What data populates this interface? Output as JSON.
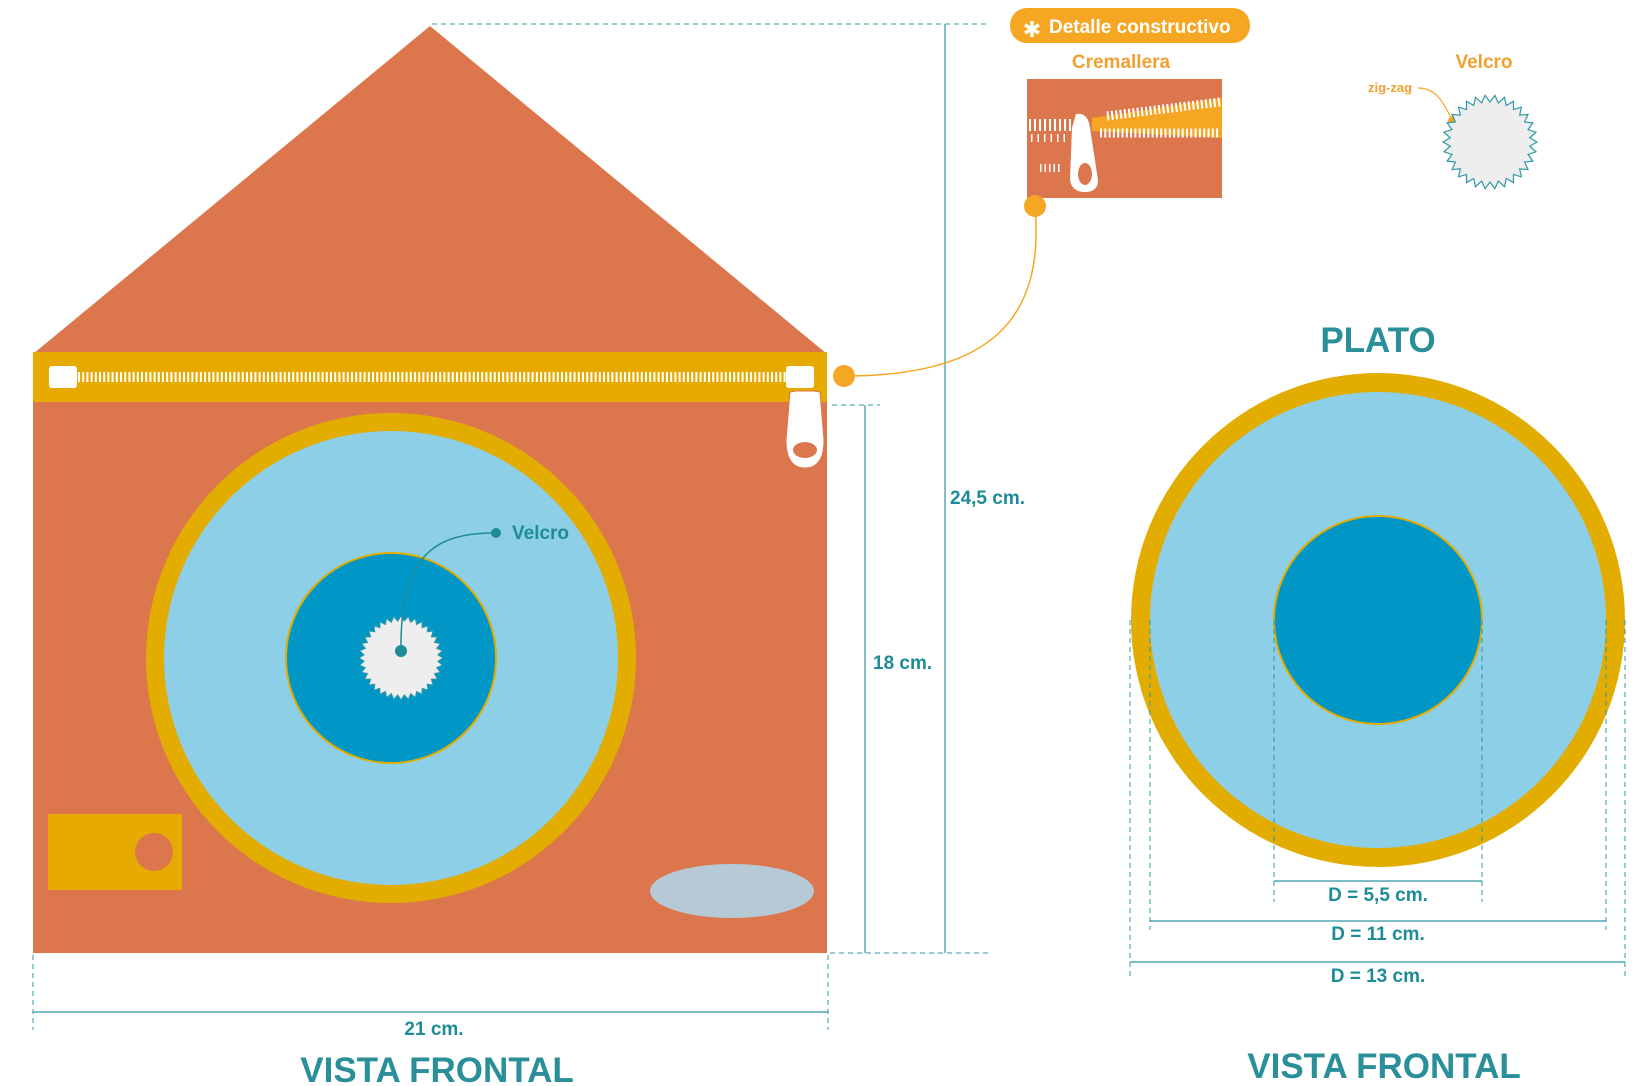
{
  "colors": {
    "house_body": "#dc764c",
    "zipper_band": "#e6aa00",
    "plate_ring": "#e2ad00",
    "plate_light": "#8ccfe6",
    "plate_dark": "#0096c6",
    "velcro": "#eeeeee",
    "pocket_oval": "#b5c9d6",
    "callout_orange": "#f5a623",
    "dimension_teal": "#2a8f99"
  },
  "house_view": {
    "velcro_label": "Velcro",
    "height_total": "24,5 cm.",
    "height_body": "18 cm.",
    "width": "21 cm.",
    "title": "VISTA FRONTAL"
  },
  "detail": {
    "badge_icon": "asterisk-icon",
    "badge_label": "Detalle constructivo",
    "zipper_label": "Cremallera",
    "velcro_label": "Velcro",
    "zigzag_label": "zig-zag"
  },
  "plate_view": {
    "heading": "PLATO",
    "d_inner": "D = 5,5 cm.",
    "d_middle": "D = 11 cm.",
    "d_outer": "D = 13 cm.",
    "title": "VISTA FRONTAL"
  }
}
